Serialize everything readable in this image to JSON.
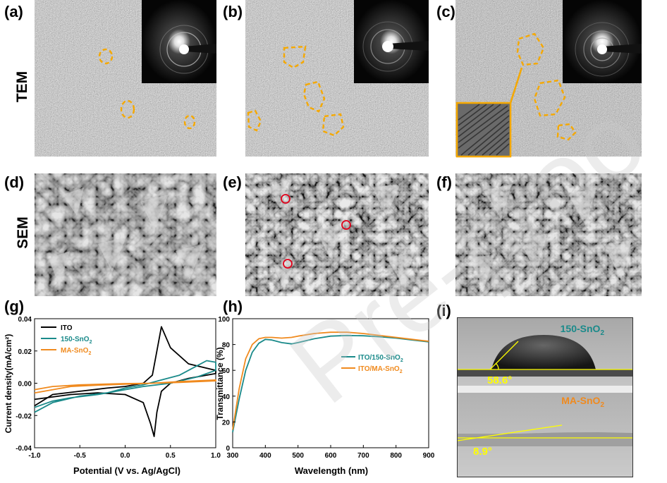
{
  "panels": {
    "a": "(a)",
    "b": "(b)",
    "c": "(c)",
    "d": "(d)",
    "e": "(e)",
    "f": "(f)",
    "g": "(g)",
    "h": "(h)",
    "i": "(i)"
  },
  "row_labels": {
    "tem": "TEM",
    "sem": "SEM"
  },
  "contact_angle": {
    "top_label": "150-SnO",
    "top_label_sub": "2",
    "top_angle": "58.6°",
    "bottom_label": "MA-SnO",
    "bottom_label_sub": "2",
    "bottom_angle": "8.9°",
    "top_label_color": "#1a8a8a",
    "bottom_label_color": "#f08a1e",
    "angle_color": "#ffff00"
  },
  "watermark": "Pre-proo",
  "colors": {
    "highlight": "#f5a800",
    "sem_marker": "#e0001a"
  },
  "chart_data": [
    {
      "type": "line",
      "panel": "g",
      "xlabel": "Potential (V vs. Ag/AgCl)",
      "ylabel": "Current density(mA/cm²)",
      "xlim": [
        -1.0,
        1.0
      ],
      "ylim": [
        -0.04,
        0.04
      ],
      "xticks": [
        "-1.0",
        "-0.5",
        "0.0",
        "0.5",
        "1.0"
      ],
      "yticks": [
        "-0.04",
        "-0.02",
        "0.00",
        "0.02",
        "0.04"
      ],
      "legend_position": "top-left",
      "series": [
        {
          "name": "ITO",
          "color": "#000000",
          "x": [
            -1.0,
            -0.8,
            -0.5,
            -0.2,
            0.0,
            0.2,
            0.3,
            0.35,
            0.4,
            0.5,
            0.7,
            1.0,
            1.0,
            0.7,
            0.5,
            0.4,
            0.35,
            0.32,
            0.28,
            0.2,
            0.0,
            -0.3,
            -0.6,
            -1.0
          ],
          "y": [
            -0.014,
            -0.007,
            -0.005,
            -0.003,
            -0.002,
            0.0,
            0.005,
            0.02,
            0.035,
            0.022,
            0.012,
            0.008,
            0.006,
            0.003,
            0.0,
            -0.005,
            -0.018,
            -0.033,
            -0.025,
            -0.012,
            -0.007,
            -0.006,
            -0.007,
            -0.01
          ]
        },
        {
          "name": "150-SnO",
          "name_sub": "2",
          "color": "#1a8a8a",
          "x": [
            -1.0,
            -0.8,
            -0.5,
            -0.2,
            0.0,
            0.2,
            0.4,
            0.6,
            0.8,
            0.9,
            1.0,
            1.0,
            0.8,
            0.5,
            0.2,
            0.0,
            -0.3,
            -0.6,
            -0.8,
            -1.0
          ],
          "y": [
            -0.018,
            -0.012,
            -0.008,
            -0.006,
            -0.003,
            -0.001,
            0.002,
            0.005,
            0.011,
            0.014,
            0.013,
            0.008,
            0.004,
            0.0,
            -0.002,
            -0.004,
            -0.007,
            -0.009,
            -0.011,
            -0.015
          ]
        },
        {
          "name": "MA-SnO",
          "name_sub": "2",
          "color": "#f08a1e",
          "x": [
            -1.0,
            -0.8,
            -0.5,
            -0.2,
            0.0,
            0.3,
            0.6,
            1.0,
            1.0,
            0.6,
            0.3,
            0.0,
            -0.3,
            -0.6,
            -1.0
          ],
          "y": [
            -0.004,
            -0.002,
            -0.001,
            -0.0005,
            -0.0002,
            0.0,
            0.001,
            0.002,
            0.0015,
            0.0005,
            0.0,
            -0.0006,
            -0.0012,
            -0.002,
            -0.006
          ]
        }
      ]
    },
    {
      "type": "line",
      "panel": "h",
      "xlabel": "Wavelength (nm)",
      "ylabel": "Transmittance (%)",
      "xlim": [
        300,
        900
      ],
      "ylim": [
        0,
        100
      ],
      "xticks": [
        "300",
        "400",
        "500",
        "600",
        "700",
        "800",
        "900"
      ],
      "yticks": [
        "0",
        "20",
        "40",
        "60",
        "80",
        "100"
      ],
      "legend_position": "right",
      "series": [
        {
          "name": "ITO/150-SnO",
          "name_sub": "2",
          "color": "#1a8a8a",
          "x": [
            300,
            320,
            340,
            360,
            380,
            400,
            420,
            450,
            480,
            500,
            550,
            600,
            650,
            700,
            750,
            800,
            850,
            900
          ],
          "y": [
            12,
            38,
            60,
            74,
            81,
            84,
            83.5,
            81.5,
            80.5,
            81.5,
            84.5,
            86.5,
            87,
            86.8,
            86,
            85,
            83.5,
            82
          ]
        },
        {
          "name": "ITO/MA-SnO",
          "name_sub": "2",
          "color": "#f08a1e",
          "x": [
            300,
            320,
            340,
            360,
            380,
            400,
            420,
            450,
            480,
            500,
            550,
            600,
            650,
            700,
            750,
            800,
            850,
            900
          ],
          "y": [
            14,
            46,
            69,
            80,
            84.5,
            85.5,
            85.5,
            85,
            85.5,
            86.5,
            88.5,
            89.5,
            89.5,
            88.5,
            87,
            85.5,
            84,
            82.5
          ]
        }
      ]
    }
  ]
}
